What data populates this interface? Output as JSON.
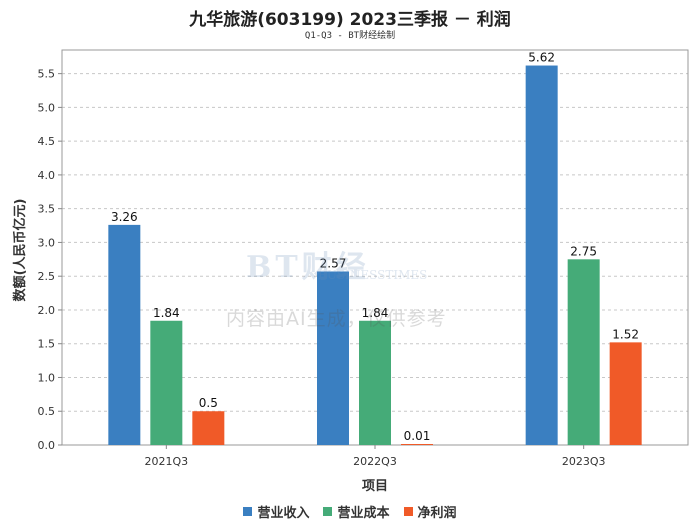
{
  "chart_data": {
    "type": "bar",
    "title": "九华旅游(603199) 2023三季报 － 利润",
    "subtitle": "Q1-Q3 - BT财经绘制",
    "xlabel": "项目",
    "ylabel": "数额(人民币亿元)",
    "categories": [
      "2021Q3",
      "2022Q3",
      "2023Q3"
    ],
    "series": [
      {
        "name": "营业收入",
        "color": "#3a7fc1",
        "values": [
          3.26,
          2.57,
          5.62
        ],
        "labels": [
          "3.26",
          "2.57",
          "5.62"
        ]
      },
      {
        "name": "营业成本",
        "color": "#45ab78",
        "values": [
          1.84,
          1.84,
          2.75
        ],
        "labels": [
          "1.84",
          "1.84",
          "2.75"
        ]
      },
      {
        "name": "净利润",
        "color": "#f05a28",
        "values": [
          0.5,
          0.01,
          1.52
        ],
        "labels": [
          "0.5",
          "0.01",
          "1.52"
        ]
      }
    ],
    "ylim": [
      0,
      5.85
    ],
    "yticks": [
      "0.0",
      "0.5",
      "1.0",
      "1.5",
      "2.0",
      "2.5",
      "3.0",
      "3.5",
      "4.0",
      "4.5",
      "5.0",
      "5.5"
    ],
    "grid": true,
    "legend": "bottom"
  },
  "watermark": {
    "logo": "BT财经",
    "sub": "BUSINESSTIMES",
    "text": "内容由AI生成，仅供参考"
  }
}
